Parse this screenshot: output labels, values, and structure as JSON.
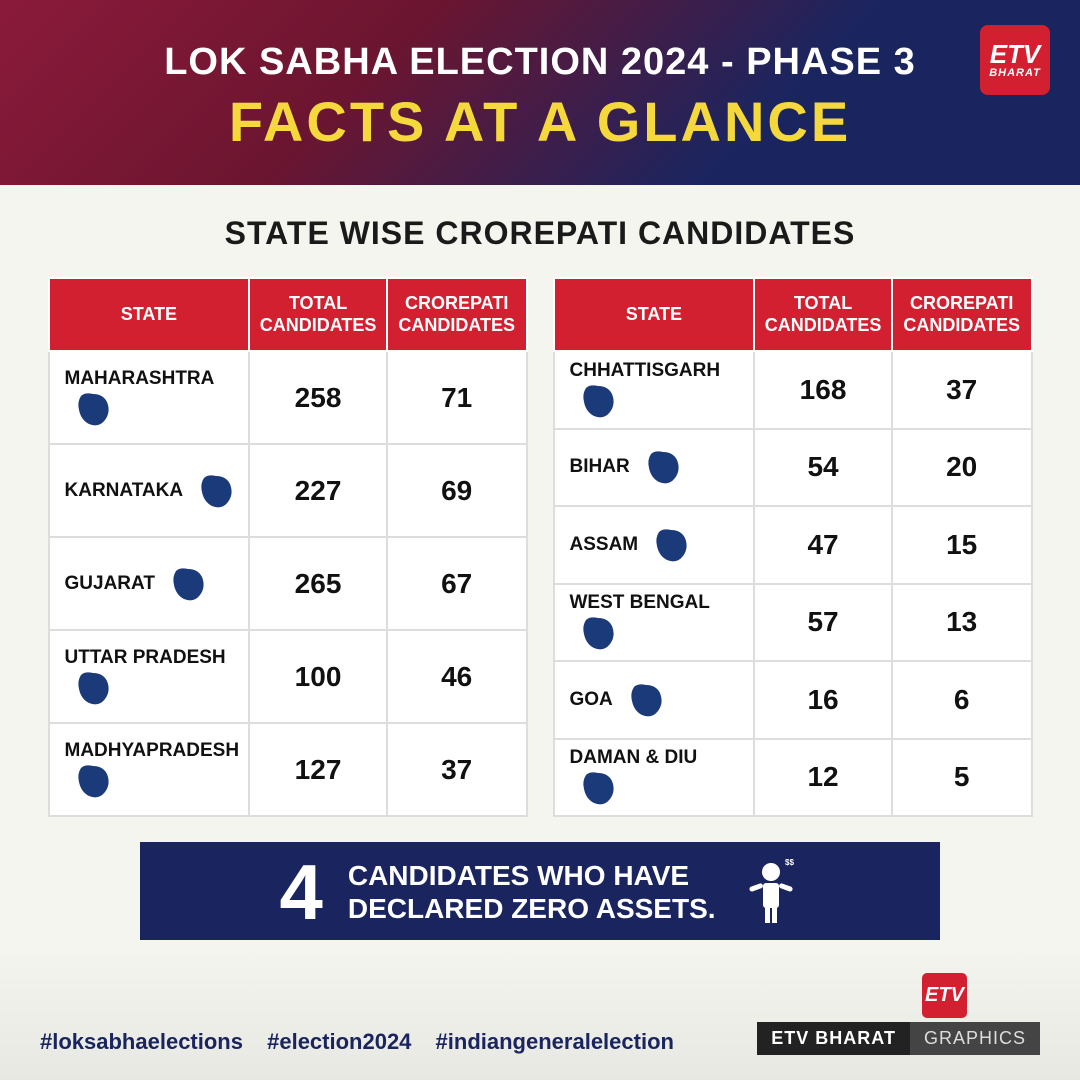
{
  "header": {
    "line1": "LOK SABHA ELECTION 2024 - PHASE 3",
    "line2": "FACTS AT A GLANCE",
    "line1_color": "#ffffff",
    "line2_color": "#f5d93c",
    "bg_gradient": [
      "#8b1a3a",
      "#1a2560"
    ]
  },
  "logo": {
    "top": "ETV",
    "bottom": "BHARAT",
    "bg_color": "#d32030"
  },
  "section_title": "STATE WISE CROREPATI CANDIDATES",
  "table_headers": {
    "state": "STATE",
    "total": "TOTAL CANDIDATES",
    "crorepati": "CROREPATI CANDIDATES",
    "header_bg": "#d32030",
    "header_color": "#ffffff"
  },
  "map_icon_color": "#1a3a7a",
  "table_left": [
    {
      "state": "MAHARASHTRA",
      "total": "258",
      "crorepati": "71"
    },
    {
      "state": "KARNATAKA",
      "total": "227",
      "crorepati": "69"
    },
    {
      "state": "GUJARAT",
      "total": "265",
      "crorepati": "67"
    },
    {
      "state": "UTTAR PRADESH",
      "total": "100",
      "crorepati": "46"
    },
    {
      "state": "MADHYAPRADESH",
      "total": "127",
      "crorepati": "37"
    }
  ],
  "table_right": [
    {
      "state": "CHHATTISGARH",
      "total": "168",
      "crorepati": "37"
    },
    {
      "state": "BIHAR",
      "total": "54",
      "crorepati": "20"
    },
    {
      "state": "ASSAM",
      "total": "47",
      "crorepati": "15"
    },
    {
      "state": "WEST BENGAL",
      "total": "57",
      "crorepati": "13"
    },
    {
      "state": "GOA",
      "total": "16",
      "crorepati": "6"
    },
    {
      "state": "DAMAN & DIU",
      "total": "12",
      "crorepati": "5"
    }
  ],
  "callout": {
    "number": "4",
    "text_line1": "CANDIDATES WHO HAVE",
    "text_line2": "DECLARED ZERO ASSETS.",
    "bg_color": "#1a2560",
    "text_color": "#ffffff"
  },
  "footer": {
    "hashtags": [
      "#loksabhaelections",
      "#election2024",
      "#indiangeneralelection"
    ],
    "label1": "ETV BHARAT",
    "label2": "GRAPHICS"
  }
}
